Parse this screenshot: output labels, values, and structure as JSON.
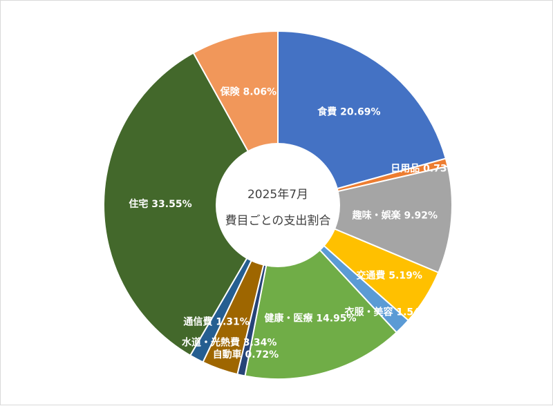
{
  "chart_data": {
    "type": "pie",
    "subtype": "donut",
    "center_text": [
      "2025年7月",
      "費目ごとの支出割合"
    ],
    "legend": "none",
    "slices": [
      {
        "label": "食費",
        "value": 20.69,
        "display": "食費 20.69%",
        "color": "#4472C4"
      },
      {
        "label": "日用品",
        "value": 0.73,
        "display": "日用品 0.73%",
        "color": "#ED7D31"
      },
      {
        "label": "趣味・娯楽",
        "value": 9.92,
        "display": "趣味・娯楽 9.92%",
        "color": "#A5A5A5"
      },
      {
        "label": "交通費",
        "value": 5.19,
        "display": "交通費 5.19%",
        "color": "#FFC000"
      },
      {
        "label": "衣服・美容",
        "value": 1.54,
        "display": "衣服・美容 1.54%",
        "color": "#5B9BD5"
      },
      {
        "label": "健康・医療",
        "value": 14.95,
        "display": "健康・医療 14.95%",
        "color": "#70AD47"
      },
      {
        "label": "自動車",
        "value": 0.72,
        "display": "自動車 0.72%",
        "color": "#264478"
      },
      {
        "label": "水道・光熱費",
        "value": 3.34,
        "display": "水道・光熱費 3.34%",
        "color": "#9E6600"
      },
      {
        "label": "通信費",
        "value": 1.31,
        "display": "通信費 1.31%",
        "color": "#255E91"
      },
      {
        "label": "住宅",
        "value": 33.55,
        "display": "住宅 33.55%",
        "color": "#43682B"
      },
      {
        "label": "保険",
        "value": 8.06,
        "display": "保険 8.06%",
        "color": "#F1975A"
      }
    ]
  }
}
